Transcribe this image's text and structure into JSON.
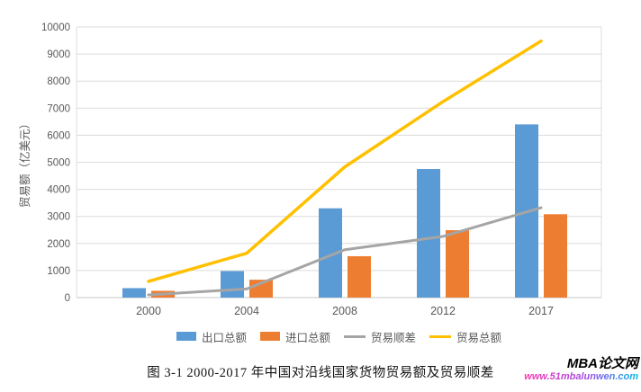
{
  "chart_data": {
    "type": "combo-bar-line",
    "categories": [
      "2000",
      "2004",
      "2008",
      "2012",
      "2017"
    ],
    "series": [
      {
        "id": "exports",
        "name": "出口总额",
        "type": "bar",
        "color": "#5B9BD5",
        "values": [
          350,
          980,
          3300,
          4750,
          6400
        ]
      },
      {
        "id": "imports",
        "name": "进口总额",
        "type": "bar",
        "color": "#ED7D31",
        "values": [
          250,
          660,
          1530,
          2490,
          3080
        ]
      },
      {
        "id": "surplus",
        "name": "贸易顺差",
        "type": "line",
        "color": "#A5A5A5",
        "values": [
          100,
          320,
          1770,
          2260,
          3320
        ]
      },
      {
        "id": "total",
        "name": "贸易总额",
        "type": "line",
        "color": "#FFC000",
        "values": [
          600,
          1640,
          4830,
          7240,
          9480
        ]
      }
    ],
    "title": "",
    "xlabel": "",
    "ylabel": "贸易额（亿美元）",
    "ylim": [
      0,
      10000
    ],
    "ytick_step": 1000,
    "grid": true,
    "legend_position": "bottom"
  },
  "axis": {
    "tick_color": "#595959",
    "grid_color": "#DCDCDC",
    "baseline_color": "#C6C6C6"
  },
  "caption": "图 3-1 2000-2017 年中国对沿线国家货物贸易额及贸易顺差",
  "watermark": {
    "brand": "MBA论文网",
    "url": "www.51mbalunwen.com"
  }
}
